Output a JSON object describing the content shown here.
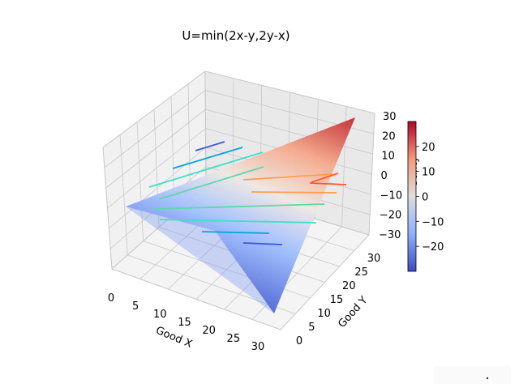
{
  "chart_data": {
    "type": "surface",
    "title": "U=min(2x-y,2y-x)",
    "xlabel": "Good X",
    "ylabel": "Good Y",
    "zlabel": "Utility",
    "function": "min(2x-y,2y-x)",
    "x_range": [
      0,
      30
    ],
    "y_range": [
      0,
      30
    ],
    "z_range": [
      -30,
      30
    ],
    "x_ticks": [
      "0",
      "5",
      "10",
      "15",
      "20",
      "25",
      "30"
    ],
    "y_ticks": [
      "0",
      "5",
      "10",
      "15",
      "20",
      "25",
      "30"
    ],
    "z_ticks": [
      "30",
      "20",
      "10",
      "0",
      "−10",
      "−20",
      "−30"
    ],
    "surface_corners": {
      "x0_y0": 0,
      "x30_y0": -30,
      "x0_y30": -30,
      "x30_y30": 30
    },
    "colorbar": {
      "colormap": "coolwarm",
      "ticks": [
        "20",
        "10",
        "0",
        "−10",
        "−20"
      ],
      "range": [
        -30,
        30
      ]
    },
    "contour_levels": [
      -25,
      -15,
      -5,
      5,
      15,
      25
    ],
    "grid": true
  }
}
